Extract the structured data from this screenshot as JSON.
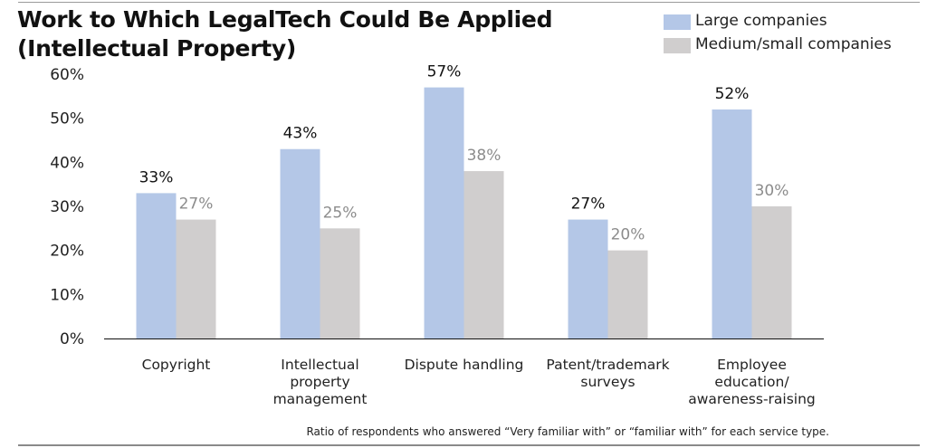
{
  "title": "Work to Which LegalTech Could Be Applied\n(Intellectual Property)",
  "footnote": "Ratio of respondents who answered “Very familiar with” or “familiar with” for each service type.",
  "colors": {
    "large": "#b4c7e7",
    "medium_small": "#d0cece",
    "label_large": "#111111",
    "label_medium_small": "#8c8c8c",
    "axis": "#111111"
  },
  "chart_data": {
    "type": "bar",
    "title": "Work to Which LegalTech Could Be Applied (Intellectual Property)",
    "categories": [
      "Copyright",
      "Intellectual\nproperty\nmanagement",
      "Dispute handling",
      "Patent/trademark\nsurveys",
      "Employee\neducation/\nawareness-raising"
    ],
    "series": [
      {
        "name": "Large companies",
        "values": [
          33,
          43,
          57,
          27,
          52
        ],
        "labels": [
          "33%",
          "43%",
          "57%",
          "27%",
          "52%"
        ]
      },
      {
        "name": "Medium/small companies",
        "values": [
          27,
          25,
          38,
          20,
          30
        ],
        "labels": [
          "27%",
          "25%",
          "38%",
          "20%",
          "30%"
        ]
      }
    ],
    "ylim": [
      0,
      60
    ],
    "yticks": [
      "0%",
      "10%",
      "20%",
      "30%",
      "40%",
      "50%",
      "60%"
    ],
    "grid": false,
    "legend": "top-right"
  }
}
